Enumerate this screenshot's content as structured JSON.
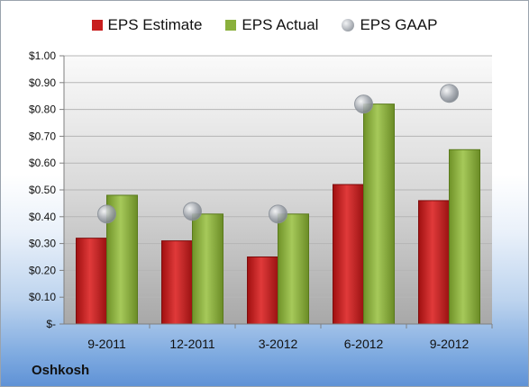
{
  "legend": {
    "estimate": "EPS Estimate",
    "actual": "EPS Actual",
    "gaap": "EPS GAAP"
  },
  "company": "Oshkosh",
  "colors": {
    "estimate": "#c81e1e",
    "actual": "#8ab03c",
    "gaap": "#a7acb3"
  },
  "chart_data": {
    "type": "bar",
    "categories": [
      "9-2011",
      "12-2011",
      "3-2012",
      "6-2012",
      "9-2012"
    ],
    "series": [
      {
        "name": "EPS Estimate",
        "values": [
          0.32,
          0.31,
          0.25,
          0.52,
          0.46
        ]
      },
      {
        "name": "EPS Actual",
        "values": [
          0.48,
          0.41,
          0.41,
          0.82,
          0.65
        ]
      },
      {
        "name": "EPS GAAP",
        "type": "scatter",
        "values": [
          0.41,
          0.42,
          0.41,
          0.82,
          0.86
        ]
      }
    ],
    "ylim": [
      0,
      1.0
    ],
    "yticks": [
      "$-",
      "$0.10",
      "$0.20",
      "$0.30",
      "$0.40",
      "$0.50",
      "$0.60",
      "$0.70",
      "$0.80",
      "$0.90",
      "$1.00"
    ],
    "grid": true,
    "legend_position": "top"
  }
}
